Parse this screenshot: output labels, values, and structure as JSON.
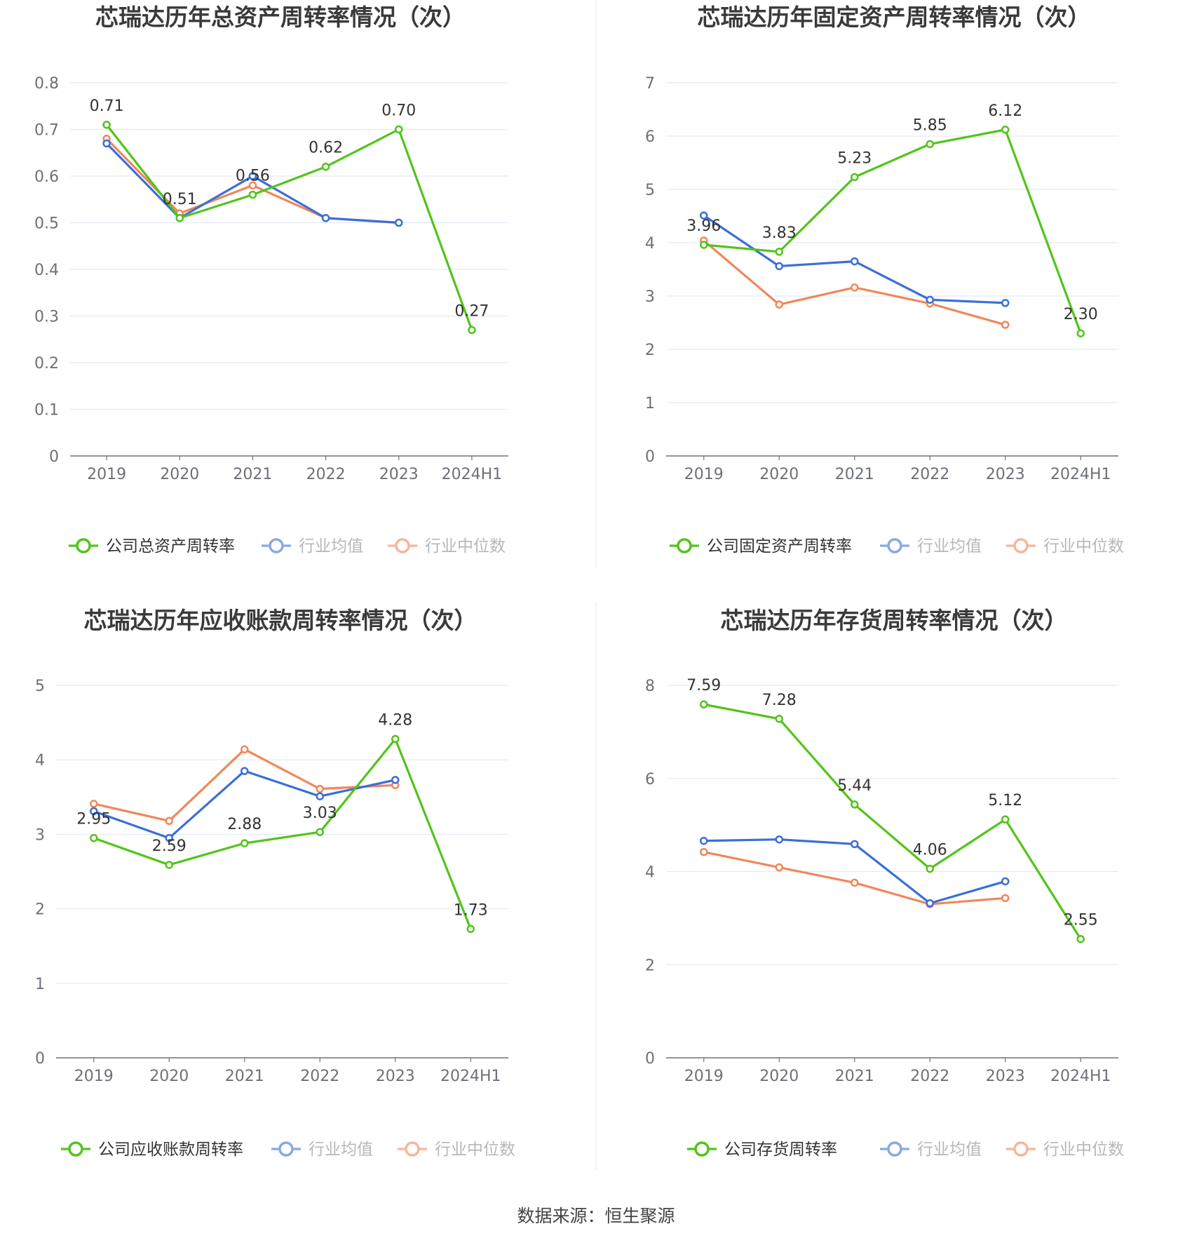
{
  "source_label": "数据来源：恒生聚源",
  "colors": {
    "company": "#52c41a",
    "average": "#3b6fd8",
    "median": "#f0875a",
    "grid": "#e0e6f1",
    "axis": "#6e7079"
  },
  "chart_data": [
    {
      "type": "line",
      "title": "芯瑞达历年总资产周转率情况（次）",
      "categories": [
        "2019",
        "2020",
        "2021",
        "2022",
        "2023",
        "2024H1"
      ],
      "y_ticks": [
        "0",
        "0.1",
        "0.2",
        "0.3",
        "0.4",
        "0.5",
        "0.6",
        "0.7",
        "0.8"
      ],
      "ylim": [
        0,
        0.8
      ],
      "grid": true,
      "legend_position": "bottom",
      "series": [
        {
          "name": "公司总资产周转率",
          "role": "company",
          "values": [
            0.71,
            0.51,
            0.56,
            0.62,
            0.7,
            0.27
          ],
          "labels": [
            "0.71",
            "0.51",
            "0.56",
            "0.62",
            "0.70",
            "0.27"
          ]
        },
        {
          "name": "行业均值",
          "role": "average",
          "values": [
            0.67,
            0.51,
            0.6,
            0.51,
            0.5,
            null
          ]
        },
        {
          "name": "行业中位数",
          "role": "median",
          "values": [
            0.68,
            0.52,
            0.58,
            0.51,
            0.5,
            null
          ]
        }
      ]
    },
    {
      "type": "line",
      "title": "芯瑞达历年固定资产周转率情况（次）",
      "categories": [
        "2019",
        "2020",
        "2021",
        "2022",
        "2023",
        "2024H1"
      ],
      "y_ticks": [
        "0",
        "1",
        "2",
        "3",
        "4",
        "5",
        "6",
        "7"
      ],
      "ylim": [
        0,
        7
      ],
      "grid": true,
      "legend_position": "bottom",
      "series": [
        {
          "name": "公司固定资产周转率",
          "role": "company",
          "values": [
            3.96,
            3.83,
            5.23,
            5.85,
            6.12,
            2.3
          ],
          "labels": [
            "3.96",
            "3.83",
            "5.23",
            "5.85",
            "6.12",
            "2.30"
          ]
        },
        {
          "name": "行业均值",
          "role": "average",
          "values": [
            4.51,
            3.56,
            3.65,
            2.93,
            2.87,
            null
          ]
        },
        {
          "name": "行业中位数",
          "role": "median",
          "values": [
            4.04,
            2.84,
            3.16,
            2.86,
            2.46,
            null
          ]
        }
      ]
    },
    {
      "type": "line",
      "title": "芯瑞达历年应收账款周转率情况（次）",
      "categories": [
        "2019",
        "2020",
        "2021",
        "2022",
        "2023",
        "2024H1"
      ],
      "y_ticks": [
        "0",
        "1",
        "2",
        "3",
        "4",
        "5"
      ],
      "ylim": [
        0,
        5
      ],
      "grid": true,
      "legend_position": "bottom",
      "series": [
        {
          "name": "公司应收账款周转率",
          "role": "company",
          "values": [
            2.95,
            2.59,
            2.88,
            3.03,
            4.28,
            1.73
          ],
          "labels": [
            "2.95",
            "2.59",
            "2.88",
            "3.03",
            "4.28",
            "1.73"
          ]
        },
        {
          "name": "行业均值",
          "role": "average",
          "values": [
            3.31,
            2.95,
            3.85,
            3.51,
            3.73,
            null
          ]
        },
        {
          "name": "行业中位数",
          "role": "median",
          "values": [
            3.41,
            3.18,
            4.14,
            3.61,
            3.66,
            null
          ]
        }
      ]
    },
    {
      "type": "line",
      "title": "芯瑞达历年存货周转率情况（次）",
      "categories": [
        "2019",
        "2020",
        "2021",
        "2022",
        "2023",
        "2024H1"
      ],
      "y_ticks": [
        "0",
        "2",
        "4",
        "6",
        "8"
      ],
      "ylim": [
        0,
        8
      ],
      "grid": true,
      "legend_position": "bottom",
      "series": [
        {
          "name": "公司存货周转率",
          "role": "company",
          "values": [
            7.59,
            7.28,
            5.44,
            4.06,
            5.12,
            2.55
          ],
          "labels": [
            "7.59",
            "7.28",
            "5.44",
            "4.06",
            "5.12",
            "2.55"
          ]
        },
        {
          "name": "行业均值",
          "role": "average",
          "values": [
            4.66,
            4.69,
            4.59,
            3.32,
            3.79,
            null
          ]
        },
        {
          "name": "行业中位数",
          "role": "median",
          "values": [
            4.42,
            4.09,
            3.76,
            3.3,
            3.43,
            null
          ]
        }
      ]
    }
  ]
}
